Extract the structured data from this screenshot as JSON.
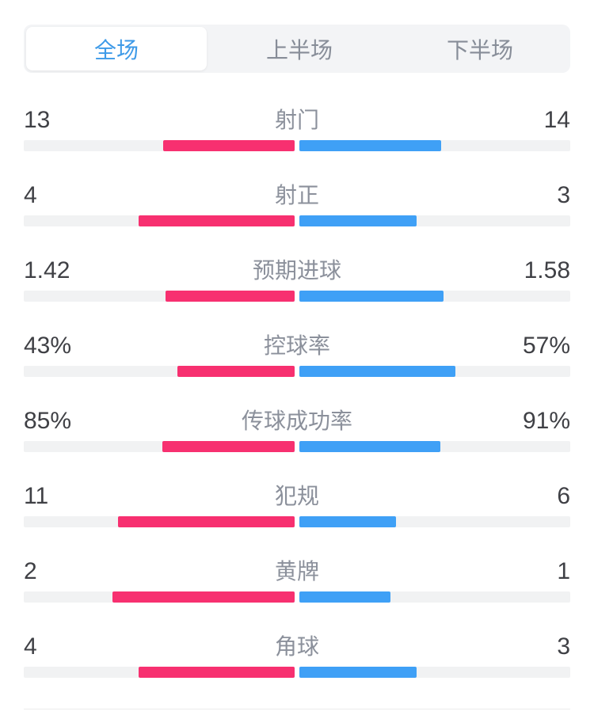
{
  "tabs": {
    "items": [
      {
        "label": "全场",
        "active": true
      },
      {
        "label": "上半场",
        "active": false
      },
      {
        "label": "下半场",
        "active": false
      }
    ],
    "active_text_color": "#3d9ae8",
    "inactive_text_color": "#878d98"
  },
  "stats": {
    "home_color": "#f73070",
    "away_color": "#3fa0f6",
    "track_color": "#f1f2f3",
    "rows": [
      {
        "label": "射门",
        "home": "13",
        "away": "14"
      },
      {
        "label": "射正",
        "home": "4",
        "away": "3"
      },
      {
        "label": "预期进球",
        "home": "1.42",
        "away": "1.58"
      },
      {
        "label": "控球率",
        "home": "43%",
        "away": "57%"
      },
      {
        "label": "传球成功率",
        "home": "85%",
        "away": "91%"
      },
      {
        "label": "犯规",
        "home": "11",
        "away": "6"
      },
      {
        "label": "黄牌",
        "home": "2",
        "away": "1"
      },
      {
        "label": "角球",
        "home": "4",
        "away": "3"
      }
    ]
  }
}
